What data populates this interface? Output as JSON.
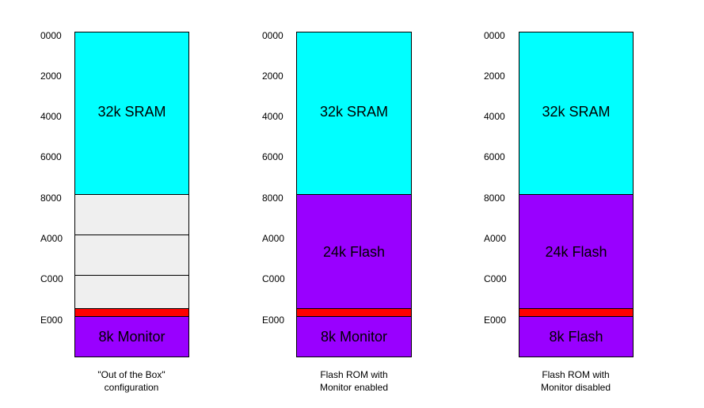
{
  "address_labels": [
    "0000",
    "2000",
    "4000",
    "6000",
    "8000",
    "A000",
    "C000",
    "E000"
  ],
  "colors": {
    "sram": "#00ffff",
    "flash": "#9900ff",
    "empty": "#efefef",
    "io": "#ff0000"
  },
  "maps": [
    {
      "caption_line1": "\"Out of the Box\"",
      "caption_line2": "configuration",
      "sram_label": "32k SRAM",
      "middle_label": "",
      "bottom_label": "8k Monitor"
    },
    {
      "caption_line1": "Flash ROM with",
      "caption_line2": "Monitor enabled",
      "sram_label": "32k SRAM",
      "middle_label": "24k Flash",
      "bottom_label": "8k Monitor"
    },
    {
      "caption_line1": "Flash ROM with",
      "caption_line2": "Monitor disabled",
      "sram_label": "32k SRAM",
      "middle_label": "24k Flash",
      "bottom_label": "8k Flash"
    }
  ]
}
